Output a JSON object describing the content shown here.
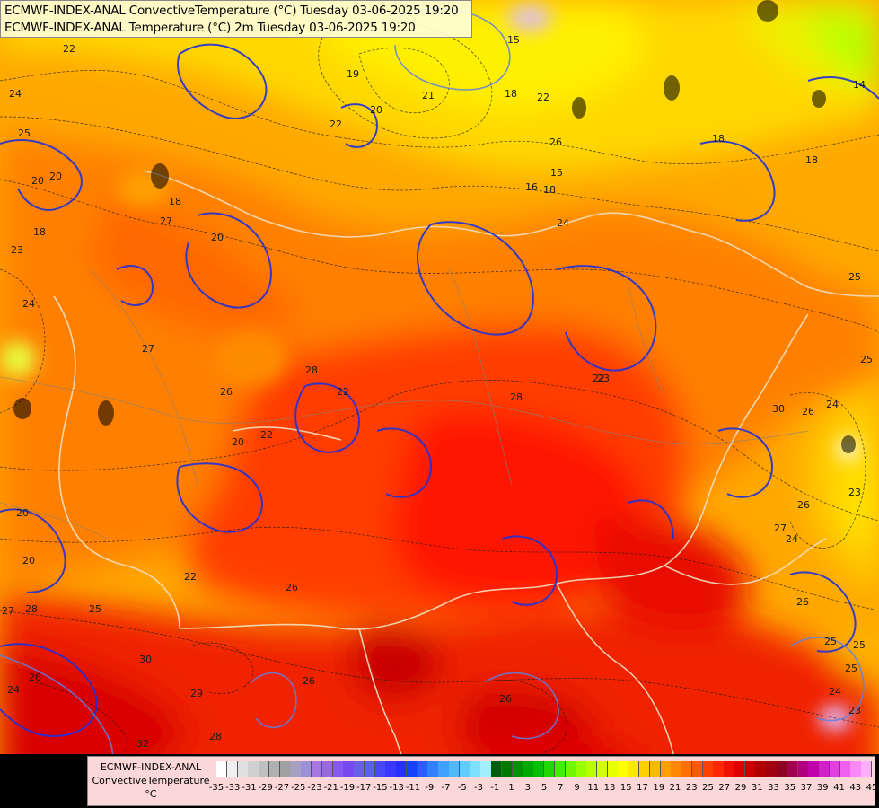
{
  "header": {
    "line1": "ECMWF-INDEX-ANAL ConvectiveTemperature (°C) Tuesday 03-06-2025 19:20",
    "line2": "ECMWF-INDEX-ANAL Temperature (°C) 2m Tuesday 03-06-2025 19:20"
  },
  "legend": {
    "line1": "ECMWF-INDEX-ANAL",
    "line2": "ConvectiveTemperature",
    "unit": "°C",
    "ticks": [
      "-35",
      "-33",
      "-31",
      "-29",
      "-27",
      "-25",
      "-23",
      "-21",
      "-19",
      "-17",
      "-15",
      "-13",
      "-11",
      "-9",
      "-7",
      "-5",
      "-3",
      "-1",
      "1",
      "3",
      "5",
      "7",
      "9",
      "11",
      "13",
      "15",
      "17",
      "19",
      "21",
      "23",
      "25",
      "27",
      "29",
      "31",
      "33",
      "35",
      "37",
      "39",
      "41",
      "43",
      "45"
    ],
    "colors": [
      "#ffffff",
      "#f0f0f0",
      "#e0e0e0",
      "#d0d0d0",
      "#c0c0c0",
      "#b0b0b0",
      "#a0a0a0",
      "#a8a0c0",
      "#9c90d8",
      "#a878e0",
      "#9868e8",
      "#8858f0",
      "#7848f0",
      "#6860e8",
      "#5860f0",
      "#4848f8",
      "#3838ff",
      "#2830ff",
      "#1840ff",
      "#2860ff",
      "#3080ff",
      "#40a0ff",
      "#50b8ff",
      "#60ccff",
      "#80e0ff",
      "#a0f0ff",
      "#006000",
      "#007800",
      "#009000",
      "#00a800",
      "#00c000",
      "#20d800",
      "#40f000",
      "#70f800",
      "#98ff00",
      "#b8ff00",
      "#d0ff00",
      "#e8ff00",
      "#ffff00",
      "#ffe800",
      "#ffd000",
      "#ffb800",
      "#ffa000",
      "#ff8800",
      "#ff7000",
      "#ff5800",
      "#ff4000",
      "#ff2800",
      "#f01000",
      "#e00000",
      "#c80000",
      "#b00000",
      "#a00010",
      "#900020",
      "#a00050",
      "#b00080",
      "#c000a8",
      "#d020c8",
      "#e040e0",
      "#f060f0",
      "#f888f8",
      "#fcb0fc"
    ]
  },
  "map": {
    "isotherm_labels": [
      "22",
      "24",
      "25",
      "20",
      "23",
      "24",
      "27",
      "27",
      "26",
      "28",
      "22",
      "22",
      "22",
      "20",
      "20",
      "20",
      "22",
      "26",
      "28",
      "27",
      "25",
      "26",
      "30",
      "29",
      "28",
      "32",
      "30",
      "26",
      "24",
      "24",
      "26",
      "25",
      "25",
      "24",
      "23",
      "26",
      "18",
      "18",
      "20",
      "20",
      "21",
      "20",
      "19",
      "22",
      "15",
      "18",
      "16",
      "15",
      "18",
      "24",
      "18",
      "14",
      "25",
      "26",
      "24",
      "25",
      "30",
      "27",
      "26",
      "25",
      "23",
      "22",
      "23",
      "28",
      "18",
      "26"
    ]
  }
}
